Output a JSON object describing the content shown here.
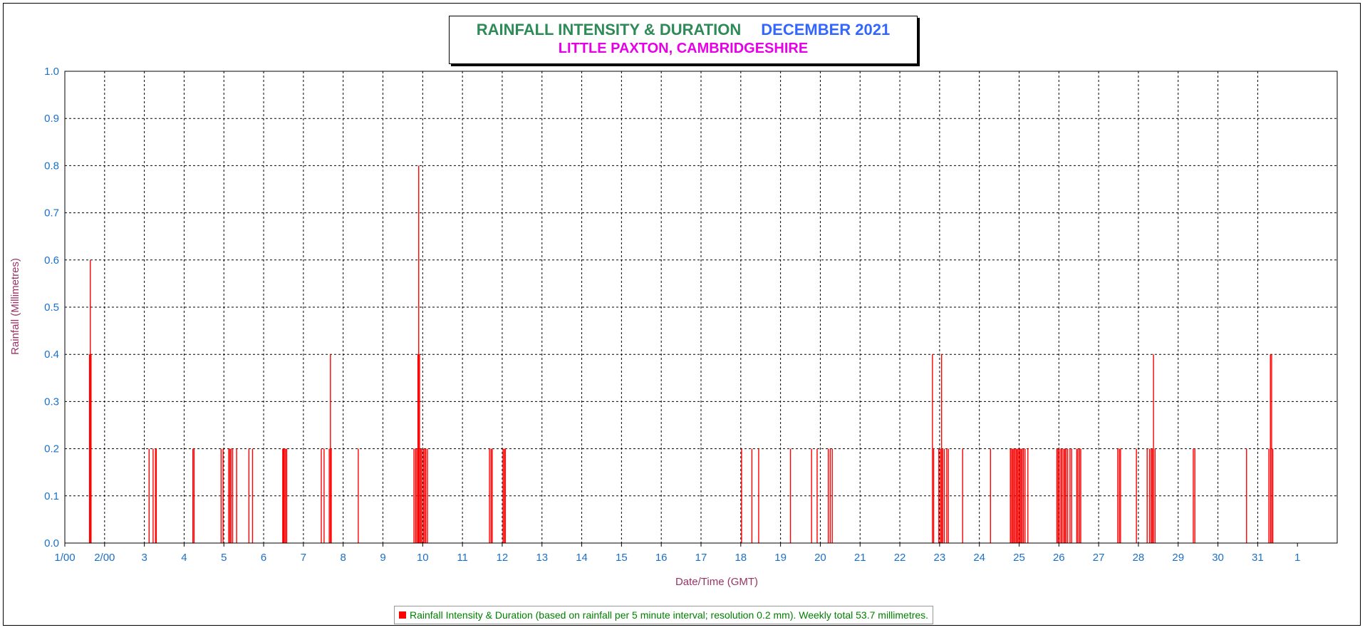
{
  "title": {
    "main": "RAINFALL INTENSITY & DURATION",
    "month": "DECEMBER 2021",
    "location": "LITTLE PAXTON, CAMBRIDGESHIRE"
  },
  "legend": {
    "text": "Rainfall Intensity & Duration (based on rainfall per 5 minute interval; resolution 0.2 mm). Weekly total 53.7 millimetres."
  },
  "colors": {
    "bars": "#ff0000",
    "axis_text": "#1a70c8",
    "label_text": "#993366",
    "title_main": "#2e8b57",
    "title_month": "#3366ff",
    "location": "#e600e6"
  },
  "chart_data": {
    "type": "bar",
    "title": "RAINFALL INTENSITY & DURATION DECEMBER 2021",
    "subtitle": "LITTLE PAXTON, CAMBRIDGESHIRE",
    "xlabel": "Date/Time (GMT)",
    "ylabel": "Rainfall (Millimetres)",
    "ylim": [
      0,
      1.0
    ],
    "xlim": [
      1,
      33
    ],
    "grid": true,
    "legend_position": "bottom",
    "x_ticks": [
      "1/00",
      "2/00",
      "3",
      "4",
      "5",
      "6",
      "7",
      "8",
      "9",
      "10",
      "11",
      "12",
      "13",
      "14",
      "15",
      "16",
      "17",
      "18",
      "19",
      "20",
      "21",
      "22",
      "23",
      "24",
      "25",
      "26",
      "27",
      "28",
      "29",
      "30",
      "31",
      "1"
    ],
    "y_ticks": [
      "0.0",
      "0.1",
      "0.2",
      "0.3",
      "0.4",
      "0.5",
      "0.6",
      "0.7",
      "0.8",
      "0.9",
      "1.0"
    ],
    "series": [
      {
        "name": "Rainfall Intensity & Duration (based on rainfall per 5 minute interval; resolution 0.2 mm). Weekly total 53.7 millimetres.",
        "points": [
          [
            1.62,
            0.4
          ],
          [
            1.64,
            0.6
          ],
          [
            1.66,
            0.4
          ],
          [
            3.12,
            0.2
          ],
          [
            3.22,
            0.2
          ],
          [
            3.28,
            0.2
          ],
          [
            3.3,
            0.2
          ],
          [
            4.22,
            0.2
          ],
          [
            4.25,
            0.2
          ],
          [
            4.93,
            0.2
          ],
          [
            4.98,
            0.2
          ],
          [
            5.12,
            0.2
          ],
          [
            5.15,
            0.2
          ],
          [
            5.18,
            0.2
          ],
          [
            5.22,
            0.2
          ],
          [
            5.32,
            0.2
          ],
          [
            5.63,
            0.2
          ],
          [
            5.72,
            0.2
          ],
          [
            6.48,
            0.2
          ],
          [
            6.5,
            0.2
          ],
          [
            6.52,
            0.2
          ],
          [
            6.55,
            0.2
          ],
          [
            6.58,
            0.2
          ],
          [
            7.45,
            0.2
          ],
          [
            7.52,
            0.2
          ],
          [
            7.65,
            0.2
          ],
          [
            7.68,
            0.4
          ],
          [
            7.7,
            0.2
          ],
          [
            8.38,
            0.2
          ],
          [
            9.78,
            0.2
          ],
          [
            9.82,
            0.2
          ],
          [
            9.85,
            0.2
          ],
          [
            9.88,
            0.4
          ],
          [
            9.9,
            0.8
          ],
          [
            9.92,
            0.4
          ],
          [
            9.95,
            0.2
          ],
          [
            9.98,
            0.2
          ],
          [
            10.02,
            0.2
          ],
          [
            10.05,
            0.2
          ],
          [
            10.08,
            0.2
          ],
          [
            10.12,
            0.2
          ],
          [
            11.68,
            0.2
          ],
          [
            11.72,
            0.2
          ],
          [
            11.75,
            0.2
          ],
          [
            12.02,
            0.2
          ],
          [
            12.05,
            0.2
          ],
          [
            12.08,
            0.2
          ],
          [
            18.02,
            0.2
          ],
          [
            18.28,
            0.2
          ],
          [
            18.45,
            0.2
          ],
          [
            19.25,
            0.2
          ],
          [
            19.78,
            0.2
          ],
          [
            19.92,
            0.2
          ],
          [
            20.2,
            0.2
          ],
          [
            20.25,
            0.2
          ],
          [
            20.3,
            0.2
          ],
          [
            22.82,
            0.4
          ],
          [
            22.85,
            0.2
          ],
          [
            22.98,
            0.2
          ],
          [
            23.02,
            0.2
          ],
          [
            23.05,
            0.4
          ],
          [
            23.08,
            0.2
          ],
          [
            23.12,
            0.2
          ],
          [
            23.18,
            0.2
          ],
          [
            23.22,
            0.2
          ],
          [
            23.58,
            0.2
          ],
          [
            24.28,
            0.2
          ],
          [
            24.78,
            0.2
          ],
          [
            24.81,
            0.2
          ],
          [
            24.84,
            0.2
          ],
          [
            24.87,
            0.2
          ],
          [
            24.9,
            0.2
          ],
          [
            24.93,
            0.2
          ],
          [
            24.96,
            0.2
          ],
          [
            24.99,
            0.2
          ],
          [
            25.02,
            0.2
          ],
          [
            25.05,
            0.2
          ],
          [
            25.08,
            0.2
          ],
          [
            25.11,
            0.2
          ],
          [
            25.15,
            0.2
          ],
          [
            25.22,
            0.2
          ],
          [
            25.95,
            0.2
          ],
          [
            25.98,
            0.2
          ],
          [
            26.01,
            0.2
          ],
          [
            26.05,
            0.2
          ],
          [
            26.08,
            0.2
          ],
          [
            26.12,
            0.2
          ],
          [
            26.15,
            0.2
          ],
          [
            26.18,
            0.2
          ],
          [
            26.22,
            0.2
          ],
          [
            26.28,
            0.2
          ],
          [
            26.32,
            0.2
          ],
          [
            26.45,
            0.2
          ],
          [
            26.48,
            0.2
          ],
          [
            26.52,
            0.2
          ],
          [
            26.55,
            0.2
          ],
          [
            27.48,
            0.2
          ],
          [
            27.52,
            0.2
          ],
          [
            27.55,
            0.2
          ],
          [
            27.95,
            0.2
          ],
          [
            28.22,
            0.2
          ],
          [
            28.28,
            0.2
          ],
          [
            28.32,
            0.2
          ],
          [
            28.35,
            0.2
          ],
          [
            28.38,
            0.4
          ],
          [
            28.42,
            0.2
          ],
          [
            29.38,
            0.2
          ],
          [
            29.42,
            0.2
          ],
          [
            30.72,
            0.2
          ],
          [
            31.28,
            0.2
          ],
          [
            31.32,
            0.4
          ],
          [
            31.35,
            0.4
          ],
          [
            31.38,
            0.2
          ]
        ]
      }
    ]
  }
}
